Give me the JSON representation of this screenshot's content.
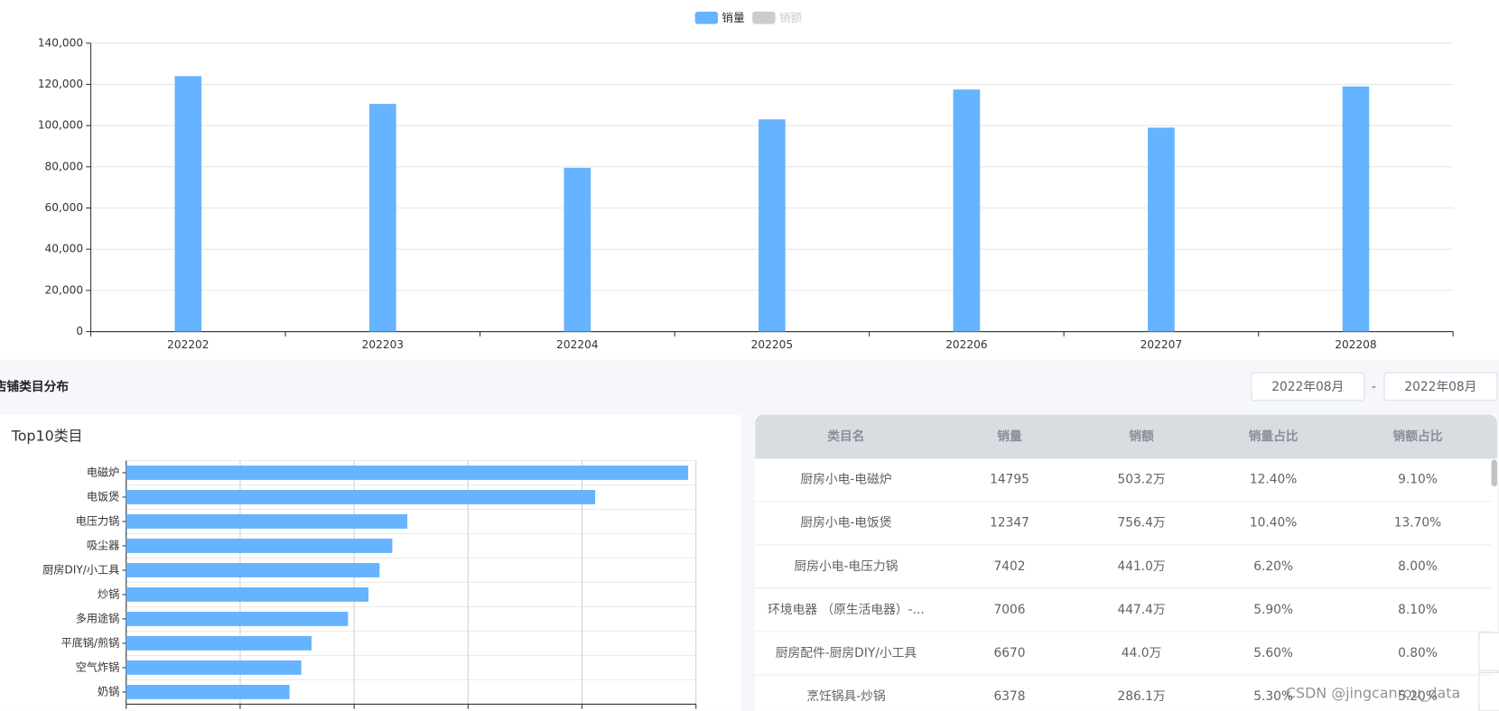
{
  "chart_data": [
    {
      "type": "bar",
      "orientation": "vertical",
      "categories": [
        "202202",
        "202203",
        "202204",
        "202205",
        "202206",
        "202207",
        "202208"
      ],
      "series": [
        {
          "name": "销量",
          "color": "#66b3ff",
          "values": [
            124000,
            110500,
            79500,
            103000,
            117500,
            99000,
            119000
          ]
        }
      ],
      "inactive_legend": {
        "name": "销额",
        "color": "#cccccc"
      },
      "ylim": [
        0,
        140000
      ],
      "yticks": [
        0,
        {
          "value": 20000,
          "label": "20,000"
        },
        {
          "value": 40000,
          "label": "40,000"
        },
        {
          "value": 60000,
          "label": "60,000"
        },
        {
          "value": 80000,
          "label": "80,000"
        },
        {
          "value": 100000,
          "label": "100,000"
        },
        {
          "value": 120000,
          "label": "120,000"
        },
        {
          "value": 140000,
          "label": "140,000"
        }
      ],
      "grid": true
    },
    {
      "type": "bar",
      "orientation": "horizontal",
      "title": "Top10类目",
      "categories": [
        "电磁炉",
        "电饭煲",
        "电压力锅",
        "吸尘器",
        "厨房DIY/小工具",
        "炒锅",
        "多用途锅",
        "平底锅/煎锅",
        "空气炸锅",
        "奶锅"
      ],
      "color": "#66b3ff",
      "values": [
        14795,
        12347,
        7402,
        7006,
        6670,
        6378,
        5840,
        4880,
        4610,
        4300
      ],
      "xlim": [
        0,
        15000
      ],
      "xticks": [
        0,
        3000,
        6000,
        9000,
        12000,
        15000
      ],
      "grid": true
    }
  ],
  "section": {
    "title": "店铺类目分布"
  },
  "date_range": {
    "start": "2022年08月",
    "separator": "-",
    "end": "2022年08月"
  },
  "table": {
    "columns": [
      "类目名",
      "销量",
      "销额",
      "销量占比",
      "销额占比"
    ],
    "rows": [
      [
        "厨房小电-电磁炉",
        "14795",
        "503.2万",
        "12.40%",
        "9.10%"
      ],
      [
        "厨房小电-电饭煲",
        "12347",
        "756.4万",
        "10.40%",
        "13.70%"
      ],
      [
        "厨房小电-电压力锅",
        "7402",
        "441.0万",
        "6.20%",
        "8.00%"
      ],
      [
        "环境电器 （原生活电器）-...",
        "7006",
        "447.4万",
        "5.90%",
        "8.10%"
      ],
      [
        "厨房配件-厨房DIY/小工具",
        "6670",
        "44.0万",
        "5.60%",
        "0.80%"
      ],
      [
        "烹饪锅具-炒锅",
        "6378",
        "286.1万",
        "5.30%",
        "5.20%"
      ]
    ]
  },
  "watermark": "CSDN @jingcanrou_data"
}
